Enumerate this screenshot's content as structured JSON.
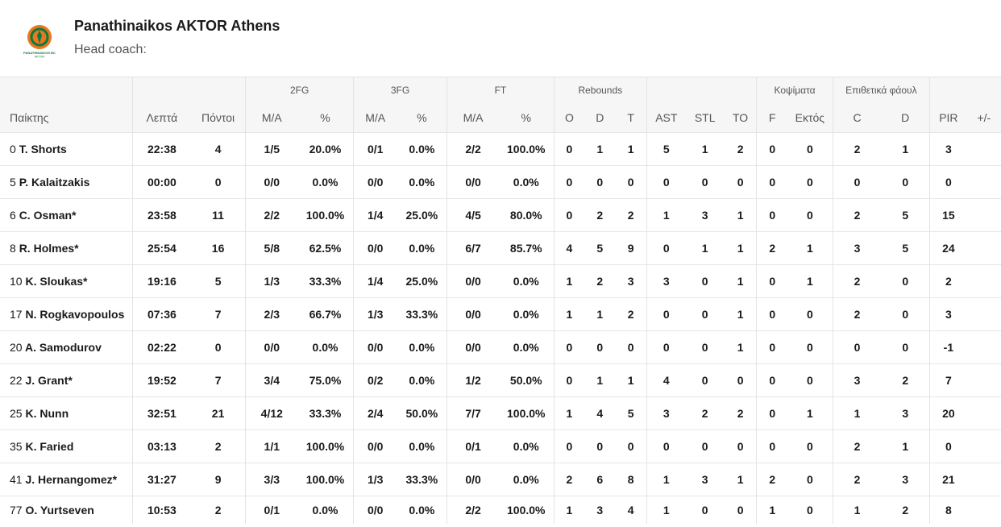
{
  "team": {
    "name": "Panathinaikos AKTOR Athens",
    "head_coach_label": "Head coach:",
    "logo_text": "PANATHINAIKOS BC AKTOR",
    "logo_colors": {
      "outer": "#e87722",
      "ring": "#0b7a3e",
      "inner": "#ffffff"
    }
  },
  "groups": {
    "fg2": "2FG",
    "fg3": "3FG",
    "ft": "FT",
    "rebounds": "Rebounds",
    "blocks": "Κοψίματα",
    "fouls": "Επιθετικά φάουλ"
  },
  "columns": {
    "player": "Παίκτης",
    "minutes": "Λεπτά",
    "points": "Πόντοι",
    "fg2_ma": "M/A",
    "fg2_pct": "%",
    "fg3_ma": "M/A",
    "fg3_pct": "%",
    "ft_ma": "M/A",
    "ft_pct": "%",
    "reb_o": "O",
    "reb_d": "D",
    "reb_t": "T",
    "ast": "AST",
    "stl": "STL",
    "to": "TO",
    "blk_f": "F",
    "blk_against": "Εκτός",
    "foul_c": "C",
    "foul_d": "D",
    "pir": "PIR",
    "plus_minus": "+/-"
  },
  "players": [
    {
      "num": "0",
      "name": "T. Shorts",
      "min": "22:38",
      "pts": "4",
      "fg2": "1/5",
      "fg2p": "20.0%",
      "fg3": "0/1",
      "fg3p": "0.0%",
      "ft": "2/2",
      "ftp": "100.0%",
      "o": "0",
      "d": "1",
      "t": "1",
      "ast": "5",
      "stl": "1",
      "to": "2",
      "blkf": "0",
      "blka": "0",
      "fc": "2",
      "fd": "1",
      "pir": "3",
      "pm": ""
    },
    {
      "num": "5",
      "name": "P. Kalaitzakis",
      "min": "00:00",
      "pts": "0",
      "fg2": "0/0",
      "fg2p": "0.0%",
      "fg3": "0/0",
      "fg3p": "0.0%",
      "ft": "0/0",
      "ftp": "0.0%",
      "o": "0",
      "d": "0",
      "t": "0",
      "ast": "0",
      "stl": "0",
      "to": "0",
      "blkf": "0",
      "blka": "0",
      "fc": "0",
      "fd": "0",
      "pir": "0",
      "pm": ""
    },
    {
      "num": "6",
      "name": "C. Osman*",
      "min": "23:58",
      "pts": "11",
      "fg2": "2/2",
      "fg2p": "100.0%",
      "fg3": "1/4",
      "fg3p": "25.0%",
      "ft": "4/5",
      "ftp": "80.0%",
      "o": "0",
      "d": "2",
      "t": "2",
      "ast": "1",
      "stl": "3",
      "to": "1",
      "blkf": "0",
      "blka": "0",
      "fc": "2",
      "fd": "5",
      "pir": "15",
      "pm": ""
    },
    {
      "num": "8",
      "name": "R. Holmes*",
      "min": "25:54",
      "pts": "16",
      "fg2": "5/8",
      "fg2p": "62.5%",
      "fg3": "0/0",
      "fg3p": "0.0%",
      "ft": "6/7",
      "ftp": "85.7%",
      "o": "4",
      "d": "5",
      "t": "9",
      "ast": "0",
      "stl": "1",
      "to": "1",
      "blkf": "2",
      "blka": "1",
      "fc": "3",
      "fd": "5",
      "pir": "24",
      "pm": ""
    },
    {
      "num": "10",
      "name": "K. Sloukas*",
      "min": "19:16",
      "pts": "5",
      "fg2": "1/3",
      "fg2p": "33.3%",
      "fg3": "1/4",
      "fg3p": "25.0%",
      "ft": "0/0",
      "ftp": "0.0%",
      "o": "1",
      "d": "2",
      "t": "3",
      "ast": "3",
      "stl": "0",
      "to": "1",
      "blkf": "0",
      "blka": "1",
      "fc": "2",
      "fd": "0",
      "pir": "2",
      "pm": ""
    },
    {
      "num": "17",
      "name": "N. Rogkavopoulos",
      "min": "07:36",
      "pts": "7",
      "fg2": "2/3",
      "fg2p": "66.7%",
      "fg3": "1/3",
      "fg3p": "33.3%",
      "ft": "0/0",
      "ftp": "0.0%",
      "o": "1",
      "d": "1",
      "t": "2",
      "ast": "0",
      "stl": "0",
      "to": "1",
      "blkf": "0",
      "blka": "0",
      "fc": "2",
      "fd": "0",
      "pir": "3",
      "pm": ""
    },
    {
      "num": "20",
      "name": "A. Samodurov",
      "min": "02:22",
      "pts": "0",
      "fg2": "0/0",
      "fg2p": "0.0%",
      "fg3": "0/0",
      "fg3p": "0.0%",
      "ft": "0/0",
      "ftp": "0.0%",
      "o": "0",
      "d": "0",
      "t": "0",
      "ast": "0",
      "stl": "0",
      "to": "1",
      "blkf": "0",
      "blka": "0",
      "fc": "0",
      "fd": "0",
      "pir": "-1",
      "pm": ""
    },
    {
      "num": "22",
      "name": "J. Grant*",
      "min": "19:52",
      "pts": "7",
      "fg2": "3/4",
      "fg2p": "75.0%",
      "fg3": "0/2",
      "fg3p": "0.0%",
      "ft": "1/2",
      "ftp": "50.0%",
      "o": "0",
      "d": "1",
      "t": "1",
      "ast": "4",
      "stl": "0",
      "to": "0",
      "blkf": "0",
      "blka": "0",
      "fc": "3",
      "fd": "2",
      "pir": "7",
      "pm": ""
    },
    {
      "num": "25",
      "name": "K. Nunn",
      "min": "32:51",
      "pts": "21",
      "fg2": "4/12",
      "fg2p": "33.3%",
      "fg3": "2/4",
      "fg3p": "50.0%",
      "ft": "7/7",
      "ftp": "100.0%",
      "o": "1",
      "d": "4",
      "t": "5",
      "ast": "3",
      "stl": "2",
      "to": "2",
      "blkf": "0",
      "blka": "1",
      "fc": "1",
      "fd": "3",
      "pir": "20",
      "pm": ""
    },
    {
      "num": "35",
      "name": "K. Faried",
      "min": "03:13",
      "pts": "2",
      "fg2": "1/1",
      "fg2p": "100.0%",
      "fg3": "0/0",
      "fg3p": "0.0%",
      "ft": "0/1",
      "ftp": "0.0%",
      "o": "0",
      "d": "0",
      "t": "0",
      "ast": "0",
      "stl": "0",
      "to": "0",
      "blkf": "0",
      "blka": "0",
      "fc": "2",
      "fd": "1",
      "pir": "0",
      "pm": ""
    },
    {
      "num": "41",
      "name": "J. Hernangomez*",
      "min": "31:27",
      "pts": "9",
      "fg2": "3/3",
      "fg2p": "100.0%",
      "fg3": "1/3",
      "fg3p": "33.3%",
      "ft": "0/0",
      "ftp": "0.0%",
      "o": "2",
      "d": "6",
      "t": "8",
      "ast": "1",
      "stl": "3",
      "to": "1",
      "blkf": "2",
      "blka": "0",
      "fc": "2",
      "fd": "3",
      "pir": "21",
      "pm": ""
    },
    {
      "num": "77",
      "name": "O. Yurtseven",
      "min": "10:53",
      "pts": "2",
      "fg2": "0/1",
      "fg2p": "0.0%",
      "fg3": "0/0",
      "fg3p": "0.0%",
      "ft": "2/2",
      "ftp": "100.0%",
      "o": "1",
      "d": "3",
      "t": "4",
      "ast": "1",
      "stl": "0",
      "to": "0",
      "blkf": "1",
      "blka": "0",
      "fc": "1",
      "fd": "2",
      "pir": "8",
      "pm": ""
    }
  ]
}
